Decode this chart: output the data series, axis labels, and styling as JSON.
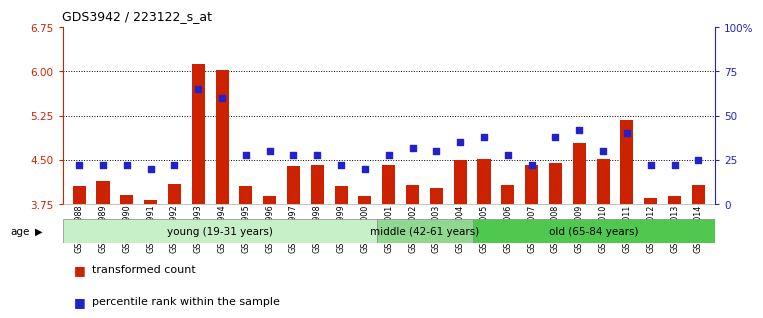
{
  "title": "GDS3942 / 223122_s_at",
  "samples": [
    "GSM812988",
    "GSM812989",
    "GSM812990",
    "GSM812991",
    "GSM812992",
    "GSM812993",
    "GSM812994",
    "GSM812995",
    "GSM812996",
    "GSM812997",
    "GSM812998",
    "GSM812999",
    "GSM813000",
    "GSM813001",
    "GSM813002",
    "GSM813003",
    "GSM813004",
    "GSM813005",
    "GSM813006",
    "GSM813007",
    "GSM813008",
    "GSM813009",
    "GSM813010",
    "GSM813011",
    "GSM813012",
    "GSM813013",
    "GSM813014"
  ],
  "red_values": [
    4.05,
    4.15,
    3.9,
    3.82,
    4.1,
    6.13,
    6.03,
    4.05,
    3.88,
    4.4,
    4.42,
    4.05,
    3.88,
    4.42,
    4.07,
    4.02,
    4.5,
    4.52,
    4.07,
    4.42,
    4.45,
    4.78,
    4.52,
    5.18,
    3.85,
    3.88,
    4.07
  ],
  "blue_values": [
    22,
    22,
    22,
    20,
    22,
    65,
    60,
    28,
    30,
    28,
    28,
    22,
    20,
    28,
    32,
    30,
    35,
    38,
    28,
    22,
    38,
    42,
    30,
    40,
    22,
    22,
    25
  ],
  "groups": [
    {
      "label": "young (19-31 years)",
      "start": 0,
      "end": 13,
      "color": "#c8f0c8"
    },
    {
      "label": "middle (42-61 years)",
      "start": 13,
      "end": 17,
      "color": "#90d890"
    },
    {
      "label": "old (65-84 years)",
      "start": 17,
      "end": 27,
      "color": "#50c850"
    }
  ],
  "ylim_left": [
    3.75,
    6.75
  ],
  "ylim_right": [
    0,
    100
  ],
  "yticks_left": [
    3.75,
    4.5,
    5.25,
    6.0,
    6.75
  ],
  "yticks_right": [
    0,
    25,
    50,
    75,
    100
  ],
  "ytick_labels_right": [
    "0",
    "25",
    "50",
    "75",
    "100%"
  ],
  "bar_color": "#cc2200",
  "square_color": "#2222cc",
  "left_axis_color": "#cc2200",
  "right_axis_color": "#2222cc",
  "legend_items": [
    "transformed count",
    "percentile rank within the sample"
  ],
  "age_label": "age",
  "grid_dotted_at": [
    4.5,
    5.25,
    6.0
  ]
}
